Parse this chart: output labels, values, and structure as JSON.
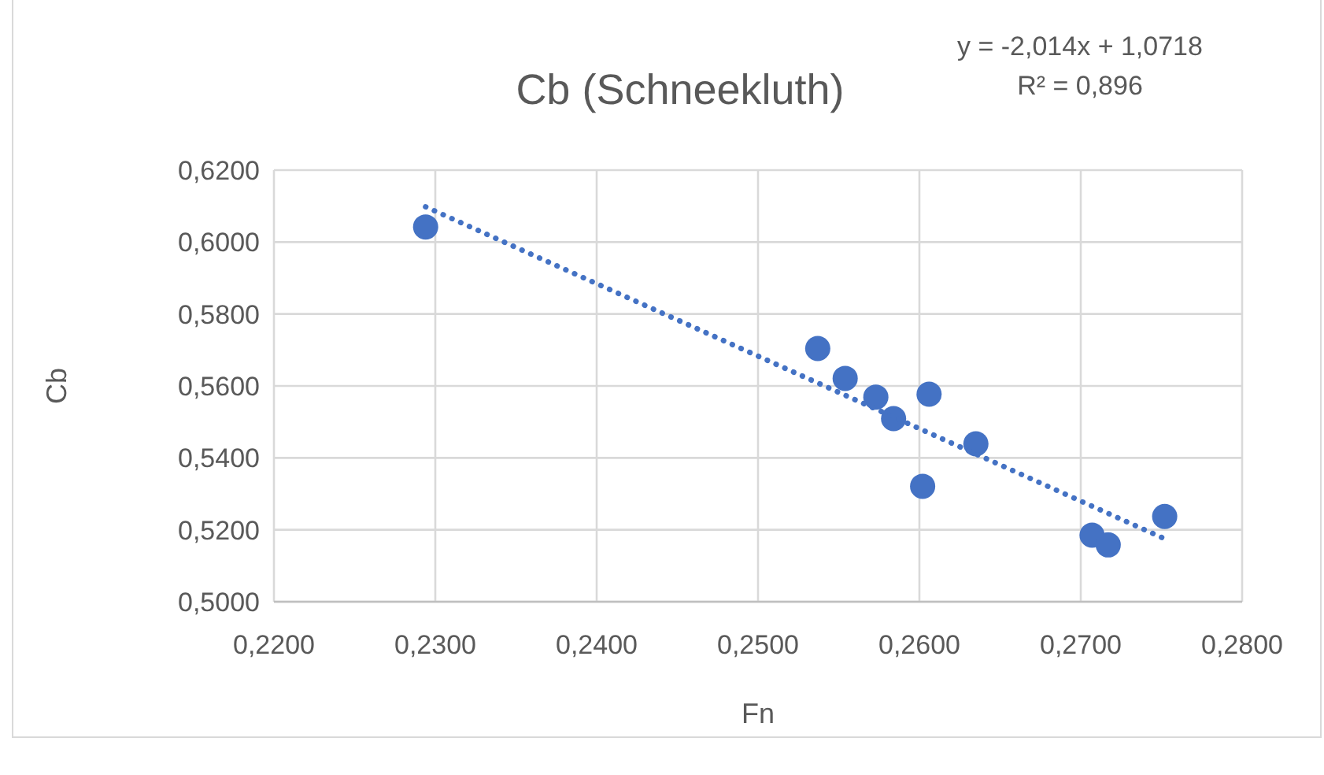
{
  "chart_data": {
    "type": "scatter",
    "title": "Cb (Schneekluth)",
    "xlabel": "Fn",
    "ylabel": "Cb",
    "annotations": [
      "y = -2,014x + 1,0718",
      "R² = 0,896"
    ],
    "xlim": [
      0.22,
      0.28
    ],
    "ylim": [
      0.5,
      0.62
    ],
    "xticks": [
      {
        "value": 0.22,
        "label": "0,2200"
      },
      {
        "value": 0.23,
        "label": "0,2300"
      },
      {
        "value": 0.24,
        "label": "0,2400"
      },
      {
        "value": 0.25,
        "label": "0,2500"
      },
      {
        "value": 0.26,
        "label": "0,2600"
      },
      {
        "value": 0.27,
        "label": "0,2700"
      },
      {
        "value": 0.28,
        "label": "0,2800"
      }
    ],
    "yticks": [
      {
        "value": 0.5,
        "label": "0,5000"
      },
      {
        "value": 0.52,
        "label": "0,5200"
      },
      {
        "value": 0.54,
        "label": "0,5400"
      },
      {
        "value": 0.56,
        "label": "0,5600"
      },
      {
        "value": 0.58,
        "label": "0,5800"
      },
      {
        "value": 0.6,
        "label": "0,6000"
      },
      {
        "value": 0.62,
        "label": "0,6200"
      }
    ],
    "grid": true,
    "series": [
      {
        "color": "#4472c4",
        "marker": "circle",
        "x": [
          0.2294,
          0.2537,
          0.2554,
          0.2573,
          0.2584,
          0.2606,
          0.2602,
          0.2635,
          0.2707,
          0.2717,
          0.2752
        ],
        "values": [
          0.6042,
          0.5704,
          0.5621,
          0.5569,
          0.5509,
          0.5577,
          0.5321,
          0.5439,
          0.5185,
          0.5158,
          0.5237
        ]
      },
      {
        "type": "line",
        "color": "#4472c4",
        "line_style": "dotted",
        "x": [
          0.2294,
          0.2752
        ],
        "values": [
          0.6098,
          0.5175
        ]
      }
    ]
  }
}
